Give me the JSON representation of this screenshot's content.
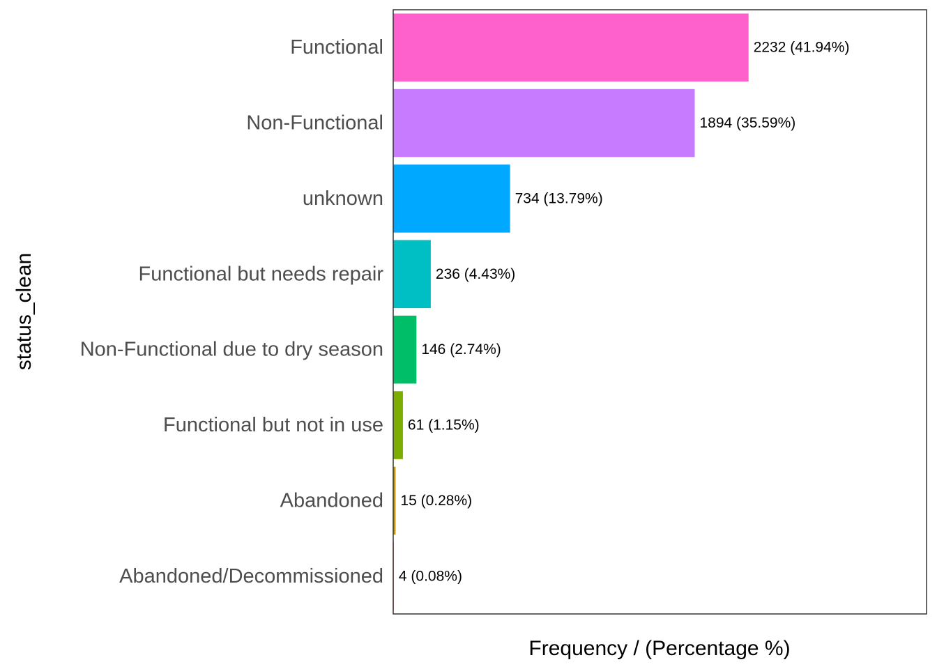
{
  "chart_data": {
    "type": "bar",
    "orientation": "horizontal",
    "xlabel": "Frequency / (Percentage %)",
    "ylabel": "status_clean",
    "xlim": [
      0,
      3350
    ],
    "grid": false,
    "legend": "none",
    "categories": [
      "Functional",
      "Non-Functional",
      "unknown",
      "Functional but needs repair",
      "Non-Functional due to dry season",
      "Functional but not in use",
      "Abandoned",
      "Abandoned/Decommissioned"
    ],
    "values": [
      2232,
      1894,
      734,
      236,
      146,
      61,
      15,
      4
    ],
    "labels": [
      "2232 (41.94%)",
      "1894 (35.59%)",
      "734 (13.79%)",
      "236 (4.43%)",
      "146 (2.74%)",
      "61 (1.15%)",
      "15 (0.28%)",
      "4 (0.08%)"
    ],
    "colors": [
      "#FF61CC",
      "#C77CFF",
      "#00A9FF",
      "#00BFC4",
      "#00BE67",
      "#7CAE00",
      "#CD9600",
      "#F8766D"
    ]
  }
}
